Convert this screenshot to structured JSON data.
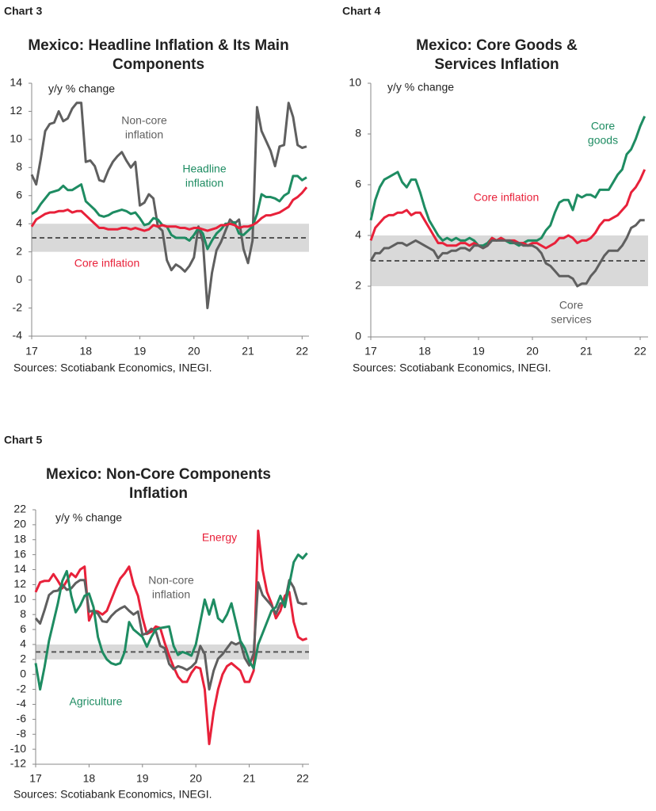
{
  "chart_data": [
    {
      "type": "line",
      "label": "Chart 3",
      "title_lines": [
        "Mexico: Headline Inflation & Its Main",
        "Components"
      ],
      "y_label": "y/y % change",
      "source": "Sources: Scotiabank Economics, INEGI.",
      "categories": [
        "17",
        null,
        null,
        null,
        null,
        null,
        null,
        null,
        null,
        null,
        null,
        null,
        "18",
        null,
        null,
        null,
        null,
        null,
        null,
        null,
        null,
        null,
        null,
        null,
        "19",
        null,
        null,
        null,
        null,
        null,
        null,
        null,
        null,
        null,
        null,
        null,
        "20",
        null,
        null,
        null,
        null,
        null,
        null,
        null,
        null,
        null,
        null,
        null,
        "21",
        null,
        null,
        null,
        null,
        null,
        null,
        null,
        null,
        null,
        null,
        null,
        "22",
        null
      ],
      "ylim": [
        -4,
        14
      ],
      "yticks": [
        -4,
        -2,
        0,
        2,
        4,
        6,
        8,
        10,
        12,
        14
      ],
      "band": [
        2,
        4
      ],
      "target": 3,
      "series": [
        {
          "label_lines": [
            "Non-core",
            "inflation"
          ],
          "color": "#5f5f5f",
          "values": [
            7.5,
            6.8,
            8.6,
            10.6,
            11.1,
            11.2,
            12.0,
            11.3,
            11.5,
            12.2,
            12.6,
            12.6,
            8.4,
            8.5,
            8.1,
            7.1,
            7.0,
            7.8,
            8.4,
            8.8,
            9.1,
            8.5,
            8.0,
            8.4,
            5.3,
            5.5,
            6.1,
            5.8,
            3.8,
            3.5,
            1.4,
            0.7,
            1.1,
            0.9,
            0.6,
            1.0,
            1.6,
            3.8,
            2.7,
            -2.0,
            0.5,
            2.1,
            2.7,
            3.5,
            4.3,
            4.0,
            4.3,
            2.2,
            1.2,
            2.8,
            12.3,
            10.6,
            9.9,
            9.2,
            8.1,
            9.5,
            9.6,
            12.6,
            11.6,
            9.6,
            9.4,
            9.5
          ]
        },
        {
          "label_lines": [
            "Headline",
            "inflation"
          ],
          "color": "#1e8c62",
          "values": [
            4.7,
            4.9,
            5.4,
            5.8,
            6.2,
            6.3,
            6.4,
            6.7,
            6.4,
            6.4,
            6.6,
            6.8,
            5.6,
            5.3,
            5.0,
            4.6,
            4.5,
            4.6,
            4.8,
            4.9,
            5.0,
            4.9,
            4.7,
            4.8,
            4.4,
            3.9,
            4.0,
            4.4,
            4.3,
            3.9,
            3.8,
            3.2,
            3.0,
            3.0,
            3.0,
            2.8,
            3.2,
            3.7,
            3.3,
            2.2,
            2.8,
            3.3,
            3.6,
            4.0,
            4.0,
            4.1,
            3.3,
            3.2,
            3.5,
            3.8,
            4.7,
            6.1,
            5.9,
            5.9,
            5.8,
            5.6,
            6.0,
            6.2,
            7.4,
            7.4,
            7.1,
            7.3
          ]
        },
        {
          "label_lines": [
            "Core inflation"
          ],
          "color": "#e8213a",
          "values": [
            3.8,
            4.3,
            4.5,
            4.7,
            4.8,
            4.8,
            4.9,
            4.9,
            5.0,
            4.8,
            4.9,
            4.9,
            4.6,
            4.3,
            4.0,
            3.7,
            3.7,
            3.6,
            3.6,
            3.6,
            3.7,
            3.7,
            3.6,
            3.7,
            3.6,
            3.5,
            3.6,
            3.9,
            3.8,
            3.9,
            3.8,
            3.8,
            3.8,
            3.7,
            3.7,
            3.6,
            3.7,
            3.7,
            3.6,
            3.5,
            3.6,
            3.7,
            3.9,
            3.9,
            4.0,
            3.9,
            3.7,
            3.8,
            3.8,
            3.9,
            4.1,
            4.4,
            4.6,
            4.6,
            4.7,
            4.8,
            5.0,
            5.2,
            5.7,
            5.9,
            6.2,
            6.6
          ]
        }
      ]
    },
    {
      "type": "line",
      "label": "Chart 4",
      "title_lines": [
        "Mexico: Core Goods &",
        "Services Inflation"
      ],
      "y_label": "y/y % change",
      "source": "Sources: Scotiabank Economics, INEGI.",
      "categories": [
        "17",
        null,
        null,
        null,
        null,
        null,
        null,
        null,
        null,
        null,
        null,
        null,
        "18",
        null,
        null,
        null,
        null,
        null,
        null,
        null,
        null,
        null,
        null,
        null,
        "19",
        null,
        null,
        null,
        null,
        null,
        null,
        null,
        null,
        null,
        null,
        null,
        "20",
        null,
        null,
        null,
        null,
        null,
        null,
        null,
        null,
        null,
        null,
        null,
        "21",
        null,
        null,
        null,
        null,
        null,
        null,
        null,
        null,
        null,
        null,
        null,
        "22",
        null
      ],
      "ylim": [
        0,
        10
      ],
      "yticks": [
        0,
        2,
        4,
        6,
        8,
        10
      ],
      "band": [
        2,
        4
      ],
      "target": 3,
      "series": [
        {
          "label_lines": [
            "Core",
            "goods"
          ],
          "color": "#1e8c62",
          "values": [
            4.6,
            5.4,
            5.9,
            6.2,
            6.3,
            6.4,
            6.5,
            6.1,
            5.9,
            6.2,
            6.2,
            5.7,
            5.1,
            4.6,
            4.3,
            4.0,
            3.8,
            3.9,
            3.8,
            3.9,
            3.8,
            3.8,
            3.9,
            3.8,
            3.6,
            3.6,
            3.7,
            3.9,
            3.8,
            3.9,
            3.8,
            3.7,
            3.7,
            3.6,
            3.7,
            3.8,
            3.8,
            3.8,
            3.9,
            4.2,
            4.4,
            4.9,
            5.3,
            5.4,
            5.4,
            5.0,
            5.6,
            5.5,
            5.6,
            5.6,
            5.5,
            5.8,
            5.8,
            5.8,
            6.1,
            6.4,
            6.6,
            7.2,
            7.4,
            7.8,
            8.3,
            8.7
          ]
        },
        {
          "label_lines": [
            "Core inflation"
          ],
          "color": "#e8213a",
          "values": [
            3.8,
            4.3,
            4.5,
            4.7,
            4.8,
            4.8,
            4.9,
            4.9,
            5.0,
            4.8,
            4.9,
            4.9,
            4.6,
            4.3,
            4.0,
            3.7,
            3.7,
            3.6,
            3.6,
            3.6,
            3.7,
            3.7,
            3.6,
            3.7,
            3.6,
            3.5,
            3.6,
            3.9,
            3.8,
            3.9,
            3.8,
            3.8,
            3.8,
            3.7,
            3.7,
            3.6,
            3.7,
            3.7,
            3.6,
            3.5,
            3.6,
            3.7,
            3.9,
            3.9,
            4.0,
            3.9,
            3.7,
            3.8,
            3.8,
            3.9,
            4.1,
            4.4,
            4.6,
            4.6,
            4.7,
            4.8,
            5.0,
            5.2,
            5.7,
            5.9,
            6.2,
            6.6
          ]
        },
        {
          "label_lines": [
            "Core",
            "services"
          ],
          "color": "#5f5f5f",
          "values": [
            3.0,
            3.3,
            3.3,
            3.5,
            3.5,
            3.6,
            3.7,
            3.7,
            3.6,
            3.7,
            3.8,
            3.7,
            3.6,
            3.5,
            3.4,
            3.1,
            3.3,
            3.3,
            3.4,
            3.4,
            3.5,
            3.5,
            3.4,
            3.6,
            3.6,
            3.5,
            3.6,
            3.8,
            3.8,
            3.8,
            3.8,
            3.8,
            3.7,
            3.7,
            3.6,
            3.6,
            3.6,
            3.5,
            3.3,
            2.9,
            2.8,
            2.6,
            2.4,
            2.4,
            2.4,
            2.3,
            2.0,
            2.1,
            2.1,
            2.4,
            2.6,
            2.9,
            3.2,
            3.4,
            3.4,
            3.4,
            3.6,
            3.9,
            4.3,
            4.4,
            4.6,
            4.6
          ]
        }
      ]
    },
    {
      "type": "line",
      "label": "Chart 5",
      "title_lines": [
        "Mexico: Non-Core Components",
        "Inflation"
      ],
      "y_label": "y/y % change",
      "source": "Sources: Scotiabank Economics, INEGI.",
      "categories": [
        "17",
        null,
        null,
        null,
        null,
        null,
        null,
        null,
        null,
        null,
        null,
        null,
        "18",
        null,
        null,
        null,
        null,
        null,
        null,
        null,
        null,
        null,
        null,
        null,
        "19",
        null,
        null,
        null,
        null,
        null,
        null,
        null,
        null,
        null,
        null,
        null,
        "20",
        null,
        null,
        null,
        null,
        null,
        null,
        null,
        null,
        null,
        null,
        null,
        "21",
        null,
        null,
        null,
        null,
        null,
        null,
        null,
        null,
        null,
        null,
        null,
        "22",
        null
      ],
      "ylim": [
        -12,
        22
      ],
      "yticks": [
        -12,
        -10,
        -8,
        -6,
        -4,
        -2,
        0,
        2,
        4,
        6,
        8,
        10,
        12,
        14,
        16,
        18,
        20,
        22
      ],
      "band": [
        2,
        4
      ],
      "target": 3,
      "series": [
        {
          "label_lines": [
            "Energy"
          ],
          "color": "#e8213a",
          "values": [
            11.0,
            12.3,
            12.5,
            12.5,
            13.4,
            12.5,
            11.5,
            12.5,
            13.5,
            13.0,
            14.0,
            14.4,
            7.2,
            8.5,
            8.4,
            8.0,
            8.5,
            10.0,
            11.5,
            12.8,
            13.5,
            14.4,
            12.0,
            10.5,
            7.6,
            5.4,
            5.7,
            6.4,
            6.2,
            4.2,
            2.5,
            1.0,
            -0.3,
            -1.0,
            -1.0,
            0.2,
            1.0,
            0.8,
            -2.0,
            -9.3,
            -5.0,
            -2.0,
            0.0,
            1.1,
            1.5,
            1.0,
            0.5,
            -1.0,
            -1.0,
            0.5,
            19.2,
            14.0,
            11.0,
            9.5,
            7.5,
            8.5,
            10.5,
            11.0,
            7.0,
            5.0,
            4.6,
            4.8
          ]
        },
        {
          "label_lines": [
            "Non-core",
            "inflation"
          ],
          "color": "#5f5f5f",
          "values": [
            7.5,
            6.8,
            8.6,
            10.6,
            11.1,
            11.2,
            12.0,
            11.3,
            11.5,
            12.2,
            12.6,
            12.6,
            8.4,
            8.5,
            8.1,
            7.1,
            7.0,
            7.8,
            8.4,
            8.8,
            9.1,
            8.5,
            8.0,
            8.4,
            5.3,
            5.5,
            6.1,
            5.8,
            3.8,
            3.5,
            1.4,
            0.7,
            1.1,
            0.9,
            0.6,
            1.0,
            1.6,
            3.8,
            2.7,
            -2.0,
            0.5,
            2.1,
            2.7,
            3.5,
            4.3,
            4.0,
            4.3,
            2.2,
            1.2,
            2.8,
            12.3,
            10.6,
            9.9,
            9.2,
            8.1,
            9.5,
            9.6,
            12.6,
            11.6,
            9.6,
            9.4,
            9.5
          ]
        },
        {
          "label_lines": [
            "Agriculture"
          ],
          "color": "#1e8c62",
          "values": [
            1.5,
            -2.0,
            1.0,
            4.5,
            7.0,
            9.5,
            12.5,
            13.8,
            10.5,
            8.3,
            9.2,
            10.5,
            10.8,
            9.0,
            5.0,
            3.0,
            2.0,
            1.5,
            1.3,
            1.5,
            3.0,
            7.0,
            6.0,
            5.5,
            5.0,
            3.7,
            5.0,
            6.0,
            6.2,
            6.3,
            6.4,
            3.8,
            2.6,
            3.0,
            2.8,
            2.5,
            4.0,
            7.0,
            10.0,
            8.0,
            10.0,
            7.5,
            7.0,
            8.0,
            9.5,
            7.0,
            4.5,
            3.5,
            1.8,
            0.8,
            4.0,
            5.5,
            7.0,
            8.5,
            9.0,
            10.5,
            9.0,
            12.0,
            15.0,
            16.0,
            15.5,
            16.2
          ]
        }
      ]
    }
  ]
}
